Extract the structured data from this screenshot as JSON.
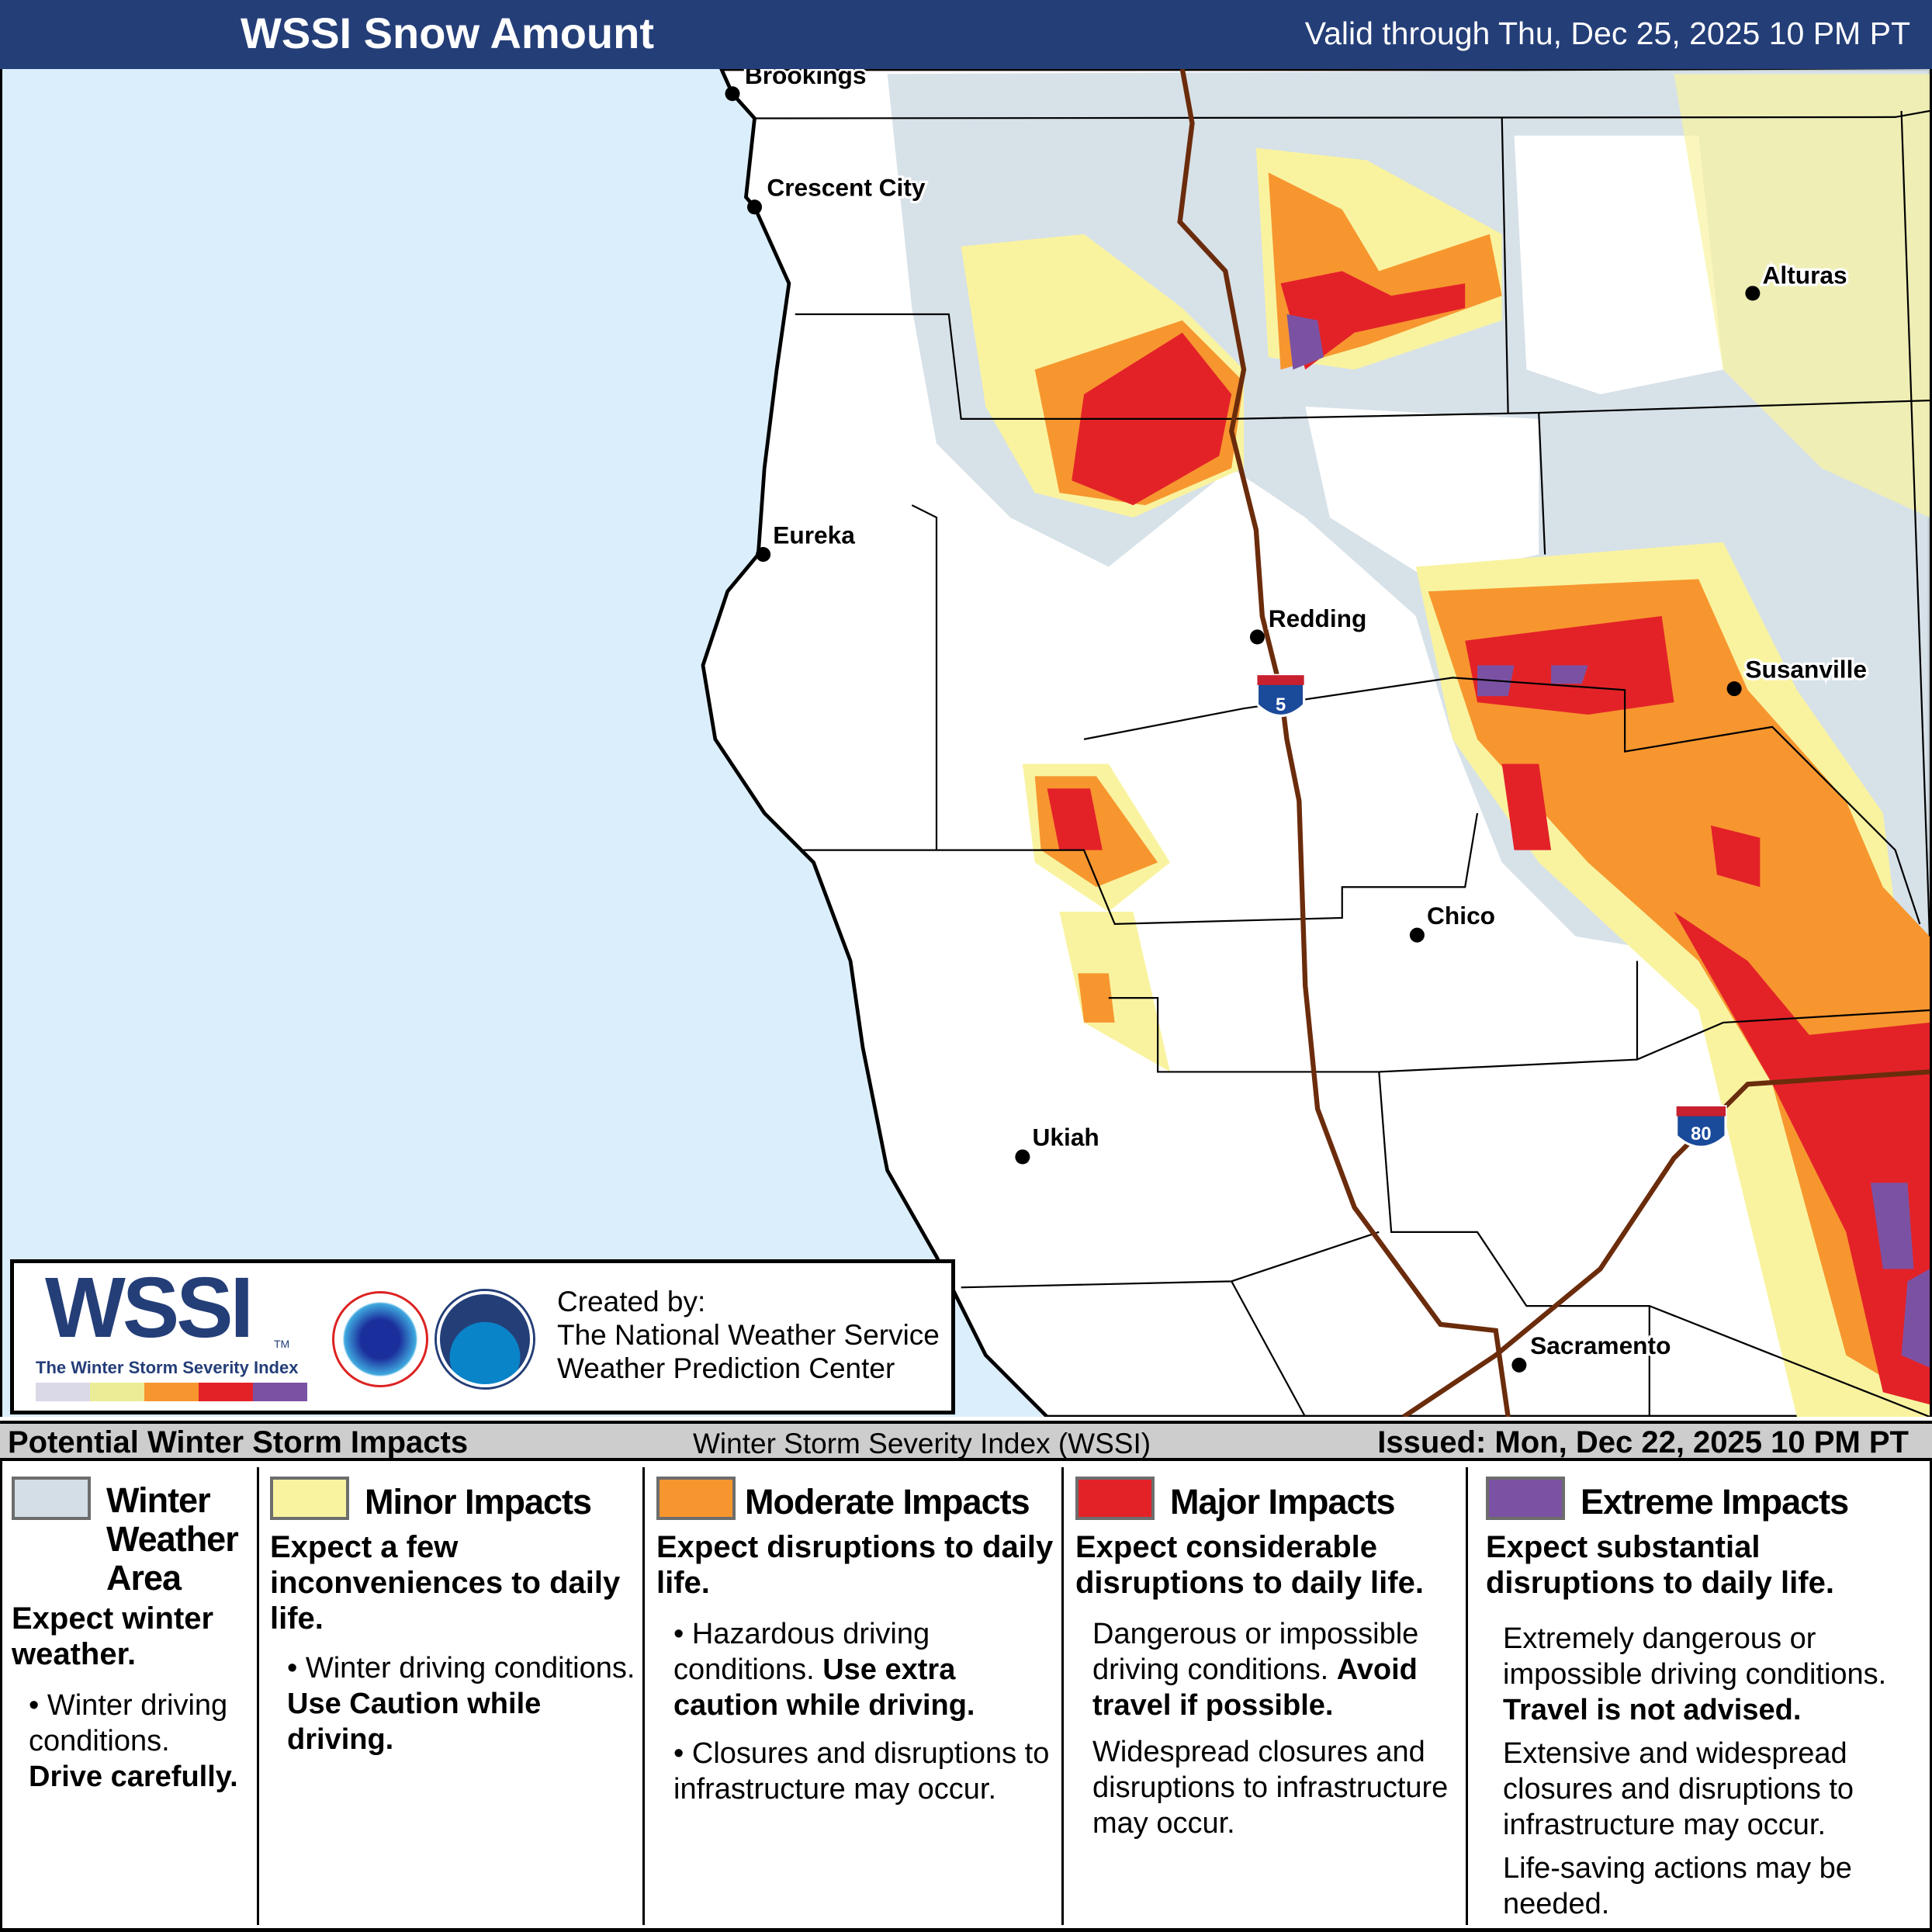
{
  "header": {
    "title": "WSSI Snow Amount",
    "valid": "Valid through Thu, Dec 25, 2025 10 PM PT"
  },
  "map": {
    "cities": [
      {
        "name": "Brookings"
      },
      {
        "name": "Crescent City"
      },
      {
        "name": "Eureka"
      },
      {
        "name": "Redding"
      },
      {
        "name": "Alturas"
      },
      {
        "name": "Susanville"
      },
      {
        "name": "Chico"
      },
      {
        "name": "Ukiah"
      },
      {
        "name": "Sacramento"
      }
    ],
    "shields": [
      "5",
      "80"
    ],
    "colors": {
      "ocean": "#dbeefc",
      "land": "#ffffff",
      "winter": "#d3dee6",
      "minor": "#f9f3a0",
      "moderate": "#f7962f",
      "major": "#e32228",
      "extreme": "#7b52a3",
      "roads": "#6b2c0c"
    }
  },
  "logo": {
    "word": "WSSI",
    "subtitle": "The Winter Storm Severity Index",
    "trademark": "TM",
    "credits": [
      "Created by:",
      "The National Weather Service",
      "Weather Prediction Center"
    ]
  },
  "legend": {
    "left": "Potential Winter Storm Impacts",
    "center": "Winter Storm Severity Index (WSSI)",
    "right": "Issued: Mon, Dec 22, 2025 10 PM PT",
    "categories": [
      {
        "name": "Winter Weather Area",
        "color": "#d3dee6",
        "summary": "Expect winter weather.",
        "text1": "Winter driving conditions.",
        "bold1": "Drive carefully."
      },
      {
        "name": "Minor Impacts",
        "color": "#f9f3a0",
        "summary": "Expect a few inconveniences to daily life.",
        "text1": "Winter driving conditions.",
        "bold1": "Use Caution while driving."
      },
      {
        "name": "Moderate Impacts",
        "color": "#f7962f",
        "summary": "Expect disruptions to daily life.",
        "text1": "Hazardous driving conditions.",
        "bold1": "Use extra caution while driving.",
        "text2": "Closures and disruptions to infrastructure may occur."
      },
      {
        "name": "Major Impacts",
        "color": "#e32228",
        "summary": "Expect considerable disruptions to daily life.",
        "text1": "Dangerous or impossible driving conditions.",
        "bold1": "Avoid travel if possible.",
        "text2": "Widespread closures and disruptions to infrastructure may occur."
      },
      {
        "name": "Extreme Impacts",
        "color": "#7b52a3",
        "summary": "Expect substantial disruptions to daily life.",
        "text1": "Extremely dangerous or impossible driving conditions.",
        "bold1": "Travel is not advised.",
        "text2": "Extensive and widespread closures and disruptions to infrastructure may occur.",
        "text3": "Life-saving actions may be needed."
      }
    ]
  }
}
